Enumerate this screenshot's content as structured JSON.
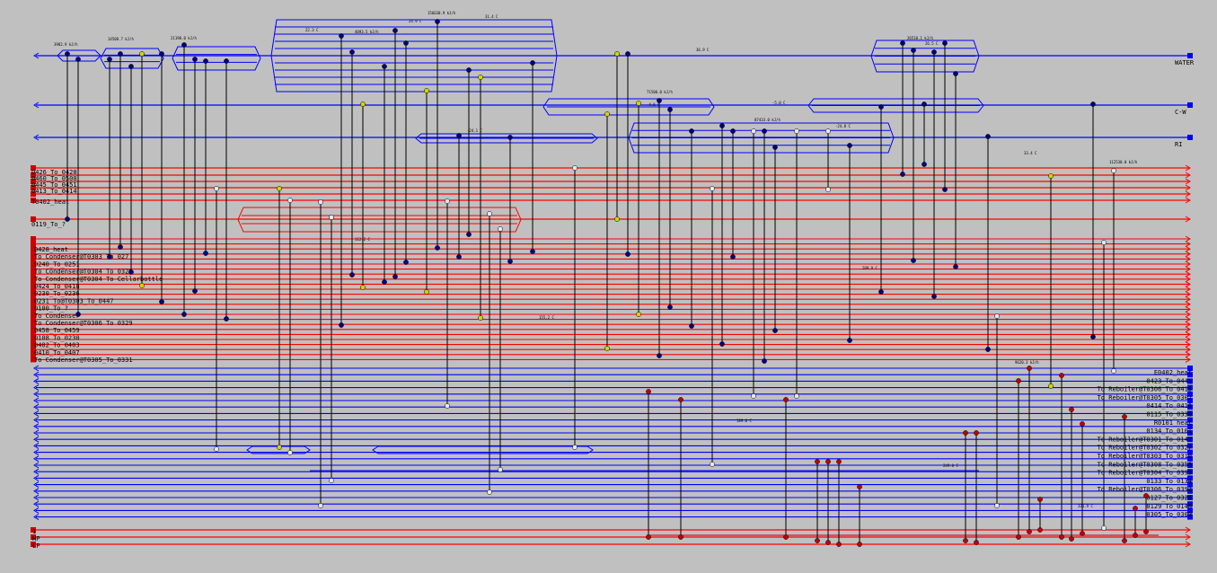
{
  "colors": {
    "background": "#c0c0c0",
    "hot": "#ff0000",
    "cold": "#0000ff",
    "hot_end": "#cc0000",
    "cold_end": "#0000ff",
    "hot_boxline": "#b00000",
    "node_dark": "#000080",
    "node_yellow": "#d4d400",
    "node_white": "#e8e8ff",
    "node_red": "#c00000",
    "link": "#000000"
  },
  "utilities": {
    "water": "WATER",
    "cw": "C-W",
    "ri": "RI"
  },
  "hot_stream_labels": [
    "0426_To_0428",
    "0460_To_0500",
    "0445_To_0451",
    "0413_To_0414",
    "T0402_heat",
    "0119_To_?"
  ],
  "hot_block_labels": [
    "0428_heat",
    "To Condenser@T0303 To 027",
    "0240_To_0251",
    "To Condenser@T0304 To 0329",
    "To Condenser@T0304 To Cellarbottle",
    "0424_To_0418",
    "0230_To_0236",
    "0231 To@T0303_To_0447",
    "0100_To_?",
    "To Condenser",
    "To Condenser@T0306 To 0329",
    "0458_To_0459",
    "0108_To_0230",
    "0402_To_0403",
    "0410_To_0407",
    "To Condenser@T0305_To_0331"
  ],
  "cold_right_labels": [
    "E0402_heat",
    "0423_To_0441",
    "To Reboiler@T0306_To_0415",
    "To Reboiler@T0305_To_0302",
    "0414_To_0416",
    "0115_To_0330",
    "R0101_heat",
    "0134_To_0101",
    "To Reboiler@T0301_To_0147",
    "To Reboiler@T0302_To_0327",
    "To Reboiler@T0303_To_0310",
    "To Reboiler@T0308_To_0356",
    "To Reboiler@T0304_To_0399",
    "0133_To_0134",
    "To Reboiler@T0306_To_0392",
    "0127_To_0328",
    "0129_To_0148",
    "0305_To_0309"
  ],
  "bottom_left_labels": [
    "1",
    "HP",
    "LP"
  ],
  "temperature_tags": [
    "22.3 C",
    "24.9 C",
    "31.4 C",
    "36.9 C",
    "-4.6 C",
    "-5.0 C",
    "-24.1 C",
    "-24.8 C",
    "26.5 C",
    "33.4 C",
    "112.2 C",
    "155.2 C",
    "189.0 C",
    "209.9 C",
    "249.0 C",
    "321.9 C"
  ],
  "duty_tags": [
    "3982.9 kJ/h",
    "14508.7 kJ/h",
    "21190.0 kJ/h",
    "4093.5 kJ/h",
    "156630.9 kJ/h",
    "71500.0 kJ/h",
    "26510.1 kJ/h",
    "87433.0 kJ/h",
    "112530.0 kJ/h",
    "9620.3 kJ/h"
  ]
}
